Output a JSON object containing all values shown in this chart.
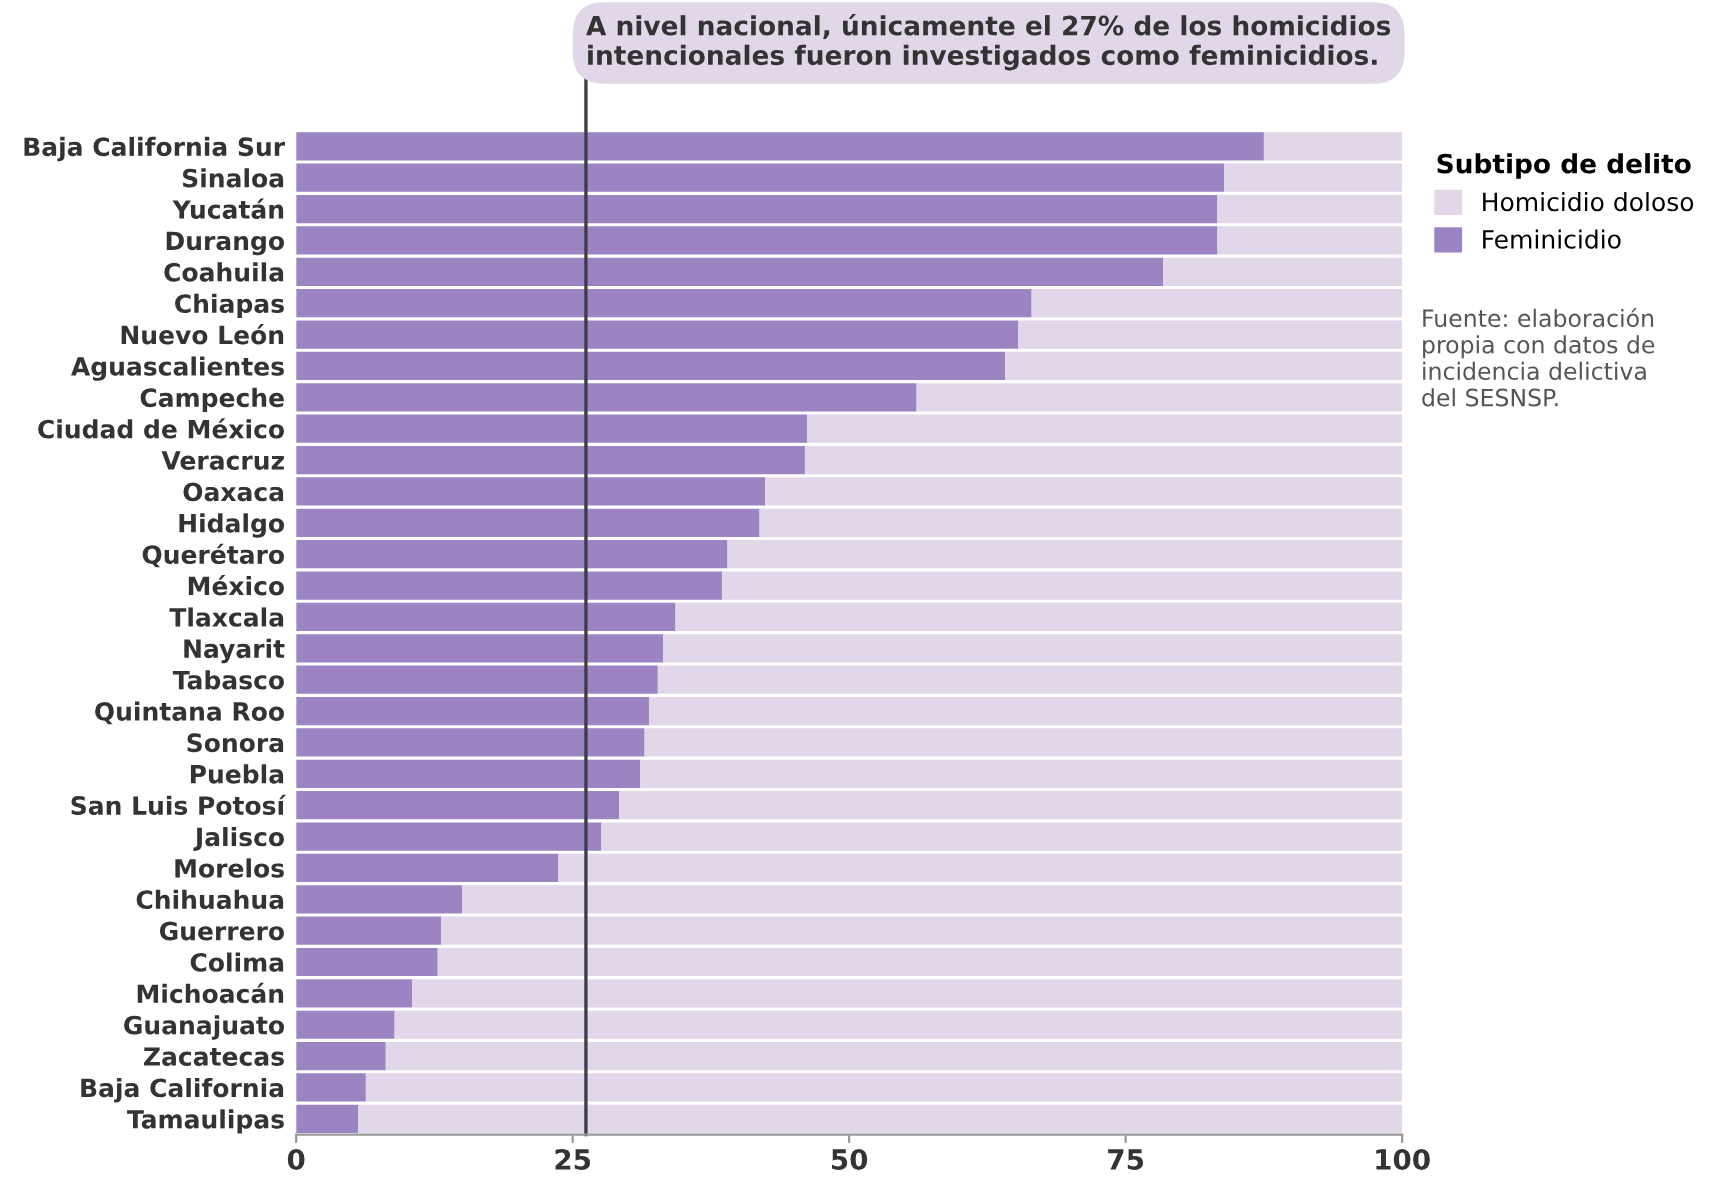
{
  "chart_data": {
    "type": "bar",
    "orientation": "horizontal",
    "stacked": true,
    "categories": [
      "Baja California Sur",
      "Sinaloa",
      "Yucatán",
      "Durango",
      "Coahuila",
      "Chiapas",
      "Nuevo León",
      "Aguascalientes",
      "Campeche",
      "Ciudad de México",
      "Veracruz",
      "Oaxaca",
      "Hidalgo",
      "Querétaro",
      "México",
      "Tlaxcala",
      "Nayarit",
      "Tabasco",
      "Quintana Roo",
      "Sonora",
      "Puebla",
      "San Luis Potosí",
      "Jalisco",
      "Morelos",
      "Chihuahua",
      "Guerrero",
      "Colima",
      "Michoacán",
      "Guanajuato",
      "Zacatecas",
      "Baja California",
      "Tamaulipas"
    ],
    "series": [
      {
        "name": "Feminicidio",
        "color": "#9b84c1",
        "values": [
          87.5,
          83.9,
          83.3,
          83.3,
          78.4,
          66.5,
          65.3,
          64.1,
          56.1,
          46.2,
          46.0,
          42.4,
          41.9,
          39.0,
          38.5,
          34.3,
          33.2,
          32.7,
          31.9,
          31.5,
          31.1,
          29.2,
          27.6,
          23.7,
          15.0,
          13.1,
          12.8,
          10.5,
          8.9,
          8.1,
          6.3,
          5.6
        ]
      },
      {
        "name": "Homicidio doloso",
        "color": "#e2d6e9",
        "values": [
          12.5,
          16.1,
          16.7,
          16.7,
          21.6,
          33.5,
          34.7,
          35.9,
          43.9,
          53.8,
          54.0,
          57.6,
          58.1,
          61.0,
          61.5,
          65.7,
          66.8,
          67.3,
          68.1,
          68.5,
          68.9,
          70.8,
          72.4,
          76.3,
          85.0,
          86.9,
          87.2,
          89.5,
          91.1,
          91.9,
          93.7,
          94.4
        ]
      }
    ],
    "xlim": [
      0,
      100
    ],
    "xticks": [
      0,
      25,
      50,
      75,
      100
    ],
    "ref_lines": [
      {
        "axis": "x",
        "value": 26.2,
        "label": "A nivel nacional, únicamente el 27% de los homicidios\nintencionales fueron investigados como feminicidios.",
        "color": "#3d3d4a"
      }
    ],
    "legend": "right",
    "legend_title": "Subtipo de delito",
    "annotations": [
      "Fuente: elaboración\npropia con datos de\nincidencia delictiva\ndel SESNSP."
    ],
    "grid": false
  }
}
